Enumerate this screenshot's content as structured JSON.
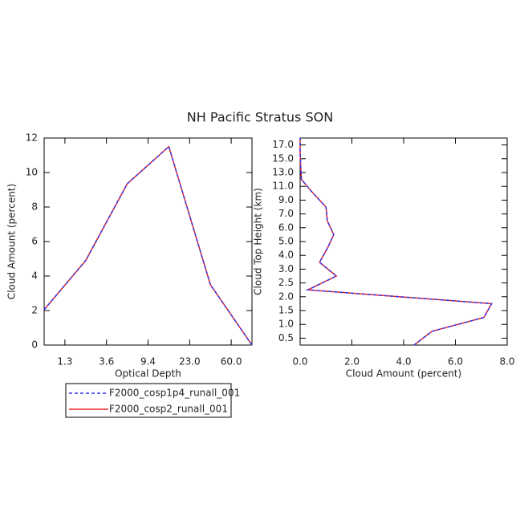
{
  "chart_data": [
    {
      "type": "line",
      "title": "NH Pacific Stratus SON",
      "x_label": "Optical Depth",
      "y_label": "Cloud Amount (percent)",
      "x": [
        0,
        1,
        2,
        3,
        4,
        5
      ],
      "xlim": [
        0,
        5
      ],
      "xticks": [
        {
          "value": 0.5,
          "label": "1.3"
        },
        {
          "value": 1.5,
          "label": "3.6"
        },
        {
          "value": 2.5,
          "label": "9.4"
        },
        {
          "value": 3.5,
          "label": "23.0"
        },
        {
          "value": 4.5,
          "label": "60.0"
        }
      ],
      "ylim": [
        0,
        12
      ],
      "yticks": [
        0,
        2,
        4,
        6,
        8,
        10,
        12
      ],
      "series": [
        {
          "name": "F2000_cosp1p4_runall_001",
          "color": "#3333ee",
          "dash": true,
          "values": [
            2.05,
            4.9,
            9.35,
            11.5,
            3.5,
            0
          ]
        },
        {
          "name": "F2000_cosp2_runall_001",
          "color": "#ee2222",
          "dash": false,
          "values": [
            2.05,
            4.9,
            9.35,
            11.5,
            3.5,
            0
          ]
        }
      ]
    },
    {
      "type": "line",
      "x_label": "Cloud Amount (percent)",
      "y_label": "Cloud Top Height (km)",
      "y": [
        0,
        1,
        2,
        3,
        4,
        5,
        6,
        7,
        8,
        9,
        10,
        11,
        12,
        13,
        14,
        15
      ],
      "xlim": [
        0,
        8
      ],
      "xticks": [
        {
          "value": 0,
          "label": "0.0"
        },
        {
          "value": 2,
          "label": "2.0"
        },
        {
          "value": 4,
          "label": "4.0"
        },
        {
          "value": 6,
          "label": "6.0"
        },
        {
          "value": 8,
          "label": "8.0"
        }
      ],
      "ylim": [
        0,
        15
      ],
      "yticks": [
        {
          "value": 0.5,
          "label": "0.5"
        },
        {
          "value": 1.5,
          "label": "1.0"
        },
        {
          "value": 2.5,
          "label": "1.5"
        },
        {
          "value": 3.5,
          "label": "2.0"
        },
        {
          "value": 4.5,
          "label": "2.5"
        },
        {
          "value": 5.5,
          "label": "3.0"
        },
        {
          "value": 6.5,
          "label": "4.0"
        },
        {
          "value": 7.5,
          "label": "5.0"
        },
        {
          "value": 8.5,
          "label": "6.0"
        },
        {
          "value": 9.5,
          "label": "7.0"
        },
        {
          "value": 10.5,
          "label": "9.0"
        },
        {
          "value": 11.5,
          "label": "11.0"
        },
        {
          "value": 12.5,
          "label": "13.0"
        },
        {
          "value": 13.5,
          "label": "15.0"
        },
        {
          "value": 14.5,
          "label": "17.0"
        }
      ],
      "series": [
        {
          "color": "#3333ee",
          "dash": true,
          "values": [
            4.4,
            5.1,
            7.1,
            7.4,
            0.3,
            1.4,
            0.75,
            1.05,
            1.3,
            1.05,
            1.0,
            0.5,
            0.05,
            0.02,
            0,
            0
          ]
        },
        {
          "color": "#ee2222",
          "dash": false,
          "values": [
            4.4,
            5.1,
            7.1,
            7.4,
            0.3,
            1.4,
            0.75,
            1.05,
            1.3,
            1.05,
            1.0,
            0.5,
            0.05,
            0.02,
            0,
            0
          ]
        }
      ]
    }
  ]
}
